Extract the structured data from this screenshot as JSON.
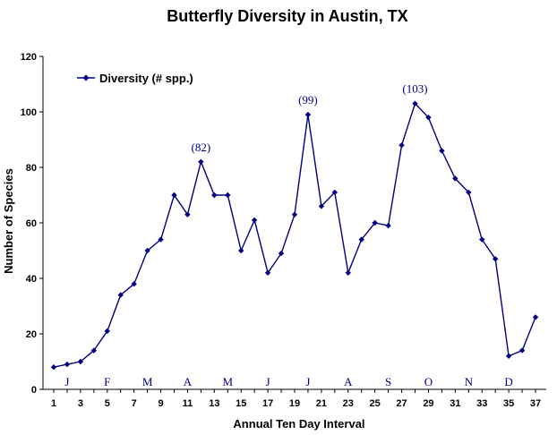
{
  "chart_data": {
    "type": "line",
    "title": "Butterfly Diversity in Austin, TX",
    "xlabel": "Annual Ten Day Interval",
    "ylabel": "Number of Species",
    "xlim": [
      1,
      37
    ],
    "ylim": [
      0,
      120
    ],
    "x_ticks": [
      1,
      3,
      5,
      7,
      9,
      11,
      13,
      15,
      17,
      19,
      21,
      23,
      25,
      27,
      29,
      31,
      33,
      35,
      37
    ],
    "y_ticks": [
      0,
      20,
      40,
      60,
      80,
      100,
      120
    ],
    "grid": false,
    "legend_position": "top-left",
    "series": [
      {
        "name": "Diversity (# spp.)",
        "color": "#000080",
        "marker": "diamond",
        "x": [
          1,
          2,
          3,
          4,
          5,
          6,
          7,
          8,
          9,
          10,
          11,
          12,
          13,
          14,
          15,
          16,
          17,
          18,
          19,
          20,
          21,
          22,
          23,
          24,
          25,
          26,
          27,
          28,
          29,
          30,
          31,
          32,
          33,
          34,
          35,
          36,
          37
        ],
        "values": [
          8,
          9,
          10,
          14,
          21,
          34,
          38,
          50,
          54,
          70,
          63,
          82,
          70,
          70,
          50,
          61,
          42,
          49,
          63,
          99,
          66,
          71,
          42,
          54,
          60,
          59,
          88,
          103,
          98,
          86,
          76,
          71,
          54,
          47,
          12,
          14,
          26
        ]
      }
    ],
    "annotations": [
      {
        "text": "(82)",
        "x": 12,
        "y": 82
      },
      {
        "text": "(99)",
        "x": 20,
        "y": 99
      },
      {
        "text": "(103)",
        "x": 28,
        "y": 103
      }
    ],
    "month_labels": [
      {
        "text": "J",
        "x": 2
      },
      {
        "text": "F",
        "x": 5
      },
      {
        "text": "M",
        "x": 8
      },
      {
        "text": "A",
        "x": 11
      },
      {
        "text": "M",
        "x": 14
      },
      {
        "text": "J",
        "x": 17
      },
      {
        "text": "J",
        "x": 20
      },
      {
        "text": "A",
        "x": 23
      },
      {
        "text": "S",
        "x": 26
      },
      {
        "text": "O",
        "x": 29
      },
      {
        "text": "N",
        "x": 32
      },
      {
        "text": "D",
        "x": 35
      }
    ]
  }
}
